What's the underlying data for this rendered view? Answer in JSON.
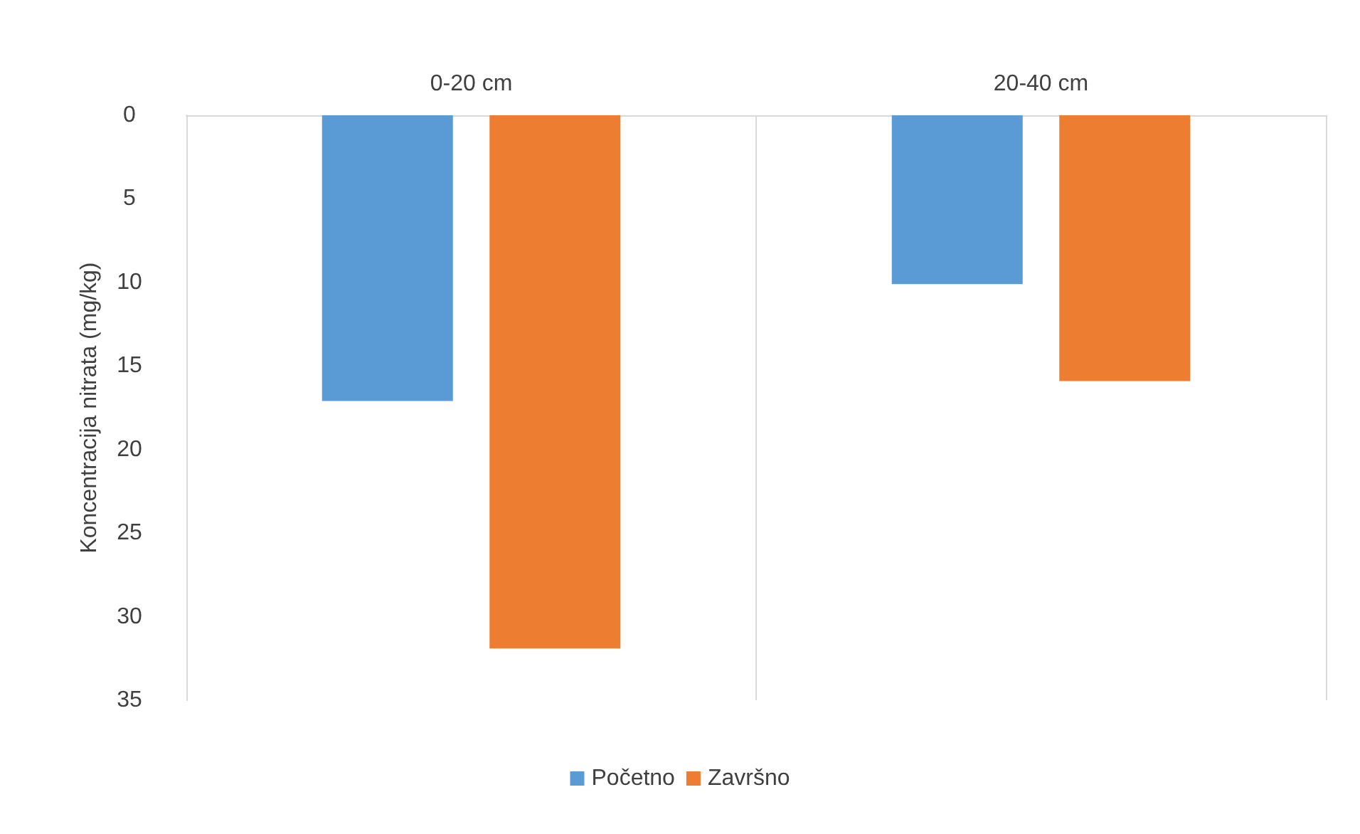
{
  "chart_data": {
    "type": "bar",
    "ylabel": "Koncentracija nitrata (mg/kg)",
    "categories": [
      "0-20 cm",
      "20-40 cm"
    ],
    "series": [
      {
        "name": "Početno",
        "color": "#5b9bd5",
        "values": [
          17.1,
          10.1
        ]
      },
      {
        "name": "Završno",
        "color": "#ed7d31",
        "values": [
          31.9,
          15.9
        ]
      }
    ],
    "ylim": [
      35,
      0
    ],
    "yticks": [
      0,
      5,
      10,
      15,
      20,
      25,
      30,
      35
    ],
    "grid": "x",
    "legend": "bottom"
  }
}
